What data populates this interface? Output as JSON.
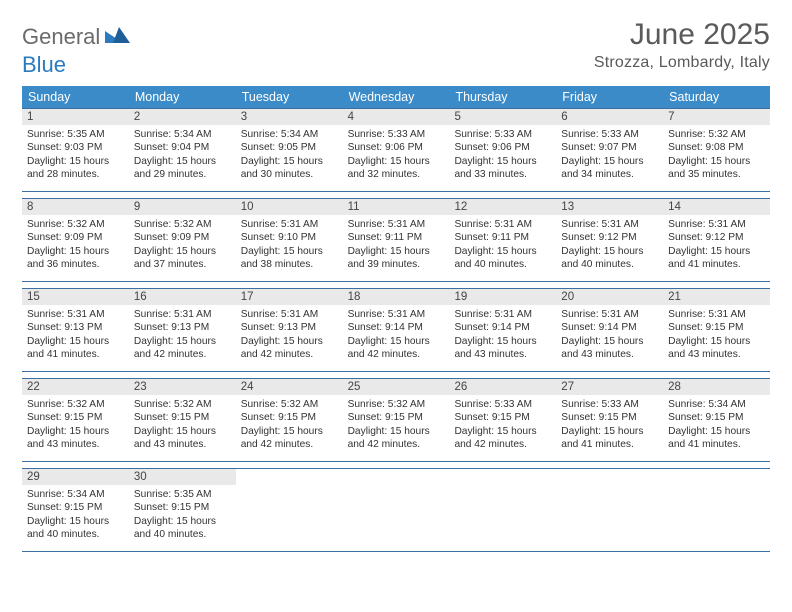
{
  "logo": {
    "part1": "General",
    "part2": "Blue"
  },
  "title": "June 2025",
  "location": "Strozza, Lombardy, Italy",
  "colors": {
    "header_bg": "#3b8bc9",
    "row_border": "#3b6fa0",
    "daynum_bg": "#e9e9e9",
    "logo_gray": "#6b6b6b",
    "logo_blue": "#2b7bbf"
  },
  "weekdays": [
    "Sunday",
    "Monday",
    "Tuesday",
    "Wednesday",
    "Thursday",
    "Friday",
    "Saturday"
  ],
  "weeks": [
    [
      {
        "n": "1",
        "sr": "5:35 AM",
        "ss": "9:03 PM",
        "dl": "15 hours and 28 minutes."
      },
      {
        "n": "2",
        "sr": "5:34 AM",
        "ss": "9:04 PM",
        "dl": "15 hours and 29 minutes."
      },
      {
        "n": "3",
        "sr": "5:34 AM",
        "ss": "9:05 PM",
        "dl": "15 hours and 30 minutes."
      },
      {
        "n": "4",
        "sr": "5:33 AM",
        "ss": "9:06 PM",
        "dl": "15 hours and 32 minutes."
      },
      {
        "n": "5",
        "sr": "5:33 AM",
        "ss": "9:06 PM",
        "dl": "15 hours and 33 minutes."
      },
      {
        "n": "6",
        "sr": "5:33 AM",
        "ss": "9:07 PM",
        "dl": "15 hours and 34 minutes."
      },
      {
        "n": "7",
        "sr": "5:32 AM",
        "ss": "9:08 PM",
        "dl": "15 hours and 35 minutes."
      }
    ],
    [
      {
        "n": "8",
        "sr": "5:32 AM",
        "ss": "9:09 PM",
        "dl": "15 hours and 36 minutes."
      },
      {
        "n": "9",
        "sr": "5:32 AM",
        "ss": "9:09 PM",
        "dl": "15 hours and 37 minutes."
      },
      {
        "n": "10",
        "sr": "5:31 AM",
        "ss": "9:10 PM",
        "dl": "15 hours and 38 minutes."
      },
      {
        "n": "11",
        "sr": "5:31 AM",
        "ss": "9:11 PM",
        "dl": "15 hours and 39 minutes."
      },
      {
        "n": "12",
        "sr": "5:31 AM",
        "ss": "9:11 PM",
        "dl": "15 hours and 40 minutes."
      },
      {
        "n": "13",
        "sr": "5:31 AM",
        "ss": "9:12 PM",
        "dl": "15 hours and 40 minutes."
      },
      {
        "n": "14",
        "sr": "5:31 AM",
        "ss": "9:12 PM",
        "dl": "15 hours and 41 minutes."
      }
    ],
    [
      {
        "n": "15",
        "sr": "5:31 AM",
        "ss": "9:13 PM",
        "dl": "15 hours and 41 minutes."
      },
      {
        "n": "16",
        "sr": "5:31 AM",
        "ss": "9:13 PM",
        "dl": "15 hours and 42 minutes."
      },
      {
        "n": "17",
        "sr": "5:31 AM",
        "ss": "9:13 PM",
        "dl": "15 hours and 42 minutes."
      },
      {
        "n": "18",
        "sr": "5:31 AM",
        "ss": "9:14 PM",
        "dl": "15 hours and 42 minutes."
      },
      {
        "n": "19",
        "sr": "5:31 AM",
        "ss": "9:14 PM",
        "dl": "15 hours and 43 minutes."
      },
      {
        "n": "20",
        "sr": "5:31 AM",
        "ss": "9:14 PM",
        "dl": "15 hours and 43 minutes."
      },
      {
        "n": "21",
        "sr": "5:31 AM",
        "ss": "9:15 PM",
        "dl": "15 hours and 43 minutes."
      }
    ],
    [
      {
        "n": "22",
        "sr": "5:32 AM",
        "ss": "9:15 PM",
        "dl": "15 hours and 43 minutes."
      },
      {
        "n": "23",
        "sr": "5:32 AM",
        "ss": "9:15 PM",
        "dl": "15 hours and 43 minutes."
      },
      {
        "n": "24",
        "sr": "5:32 AM",
        "ss": "9:15 PM",
        "dl": "15 hours and 42 minutes."
      },
      {
        "n": "25",
        "sr": "5:32 AM",
        "ss": "9:15 PM",
        "dl": "15 hours and 42 minutes."
      },
      {
        "n": "26",
        "sr": "5:33 AM",
        "ss": "9:15 PM",
        "dl": "15 hours and 42 minutes."
      },
      {
        "n": "27",
        "sr": "5:33 AM",
        "ss": "9:15 PM",
        "dl": "15 hours and 41 minutes."
      },
      {
        "n": "28",
        "sr": "5:34 AM",
        "ss": "9:15 PM",
        "dl": "15 hours and 41 minutes."
      }
    ],
    [
      {
        "n": "29",
        "sr": "5:34 AM",
        "ss": "9:15 PM",
        "dl": "15 hours and 40 minutes."
      },
      {
        "n": "30",
        "sr": "5:35 AM",
        "ss": "9:15 PM",
        "dl": "15 hours and 40 minutes."
      },
      null,
      null,
      null,
      null,
      null
    ]
  ],
  "labels": {
    "sunrise": "Sunrise: ",
    "sunset": "Sunset: ",
    "daylight": "Daylight: "
  }
}
